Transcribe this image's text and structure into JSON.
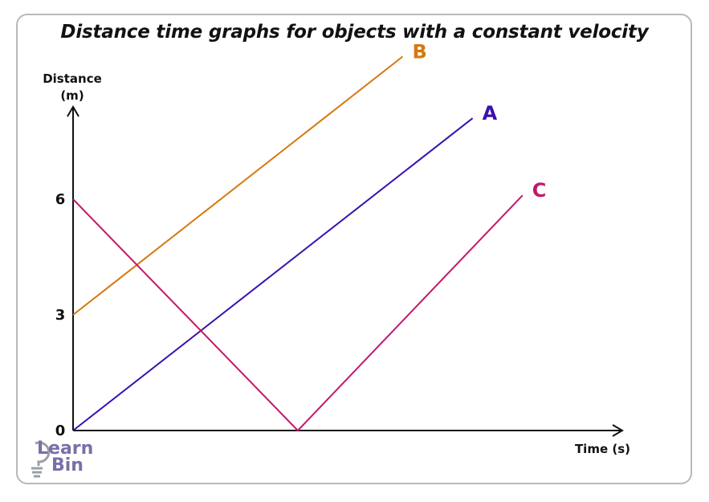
{
  "chart_data": {
    "type": "line",
    "title": "Distance time graphs for objects with a constant velocity",
    "xlabel": "Time (s)",
    "ylabel_line1": "Distance",
    "ylabel_line2": "(m)",
    "yticks": [
      "0",
      "3",
      "6"
    ],
    "ytick_values": [
      0,
      3,
      6
    ],
    "ylim": [
      0,
      8.4
    ],
    "xlim": [
      0,
      10
    ],
    "grid": false,
    "series": [
      {
        "name": "A",
        "color": "#3a10b0",
        "x": [
          0,
          8.0
        ],
        "y": [
          0,
          8.1
        ]
      },
      {
        "name": "B",
        "color": "#d6780f",
        "x": [
          0,
          6.6
        ],
        "y": [
          3,
          9.7
        ]
      },
      {
        "name": "C",
        "color": "#c2186b",
        "x": [
          0,
          4.5,
          9.0
        ],
        "y": [
          6,
          0,
          6.1
        ]
      }
    ]
  },
  "logo": {
    "line1": "Learn",
    "line2": "Bin",
    "icon": "lightbulb-icon",
    "color": "#7a6fa8"
  }
}
